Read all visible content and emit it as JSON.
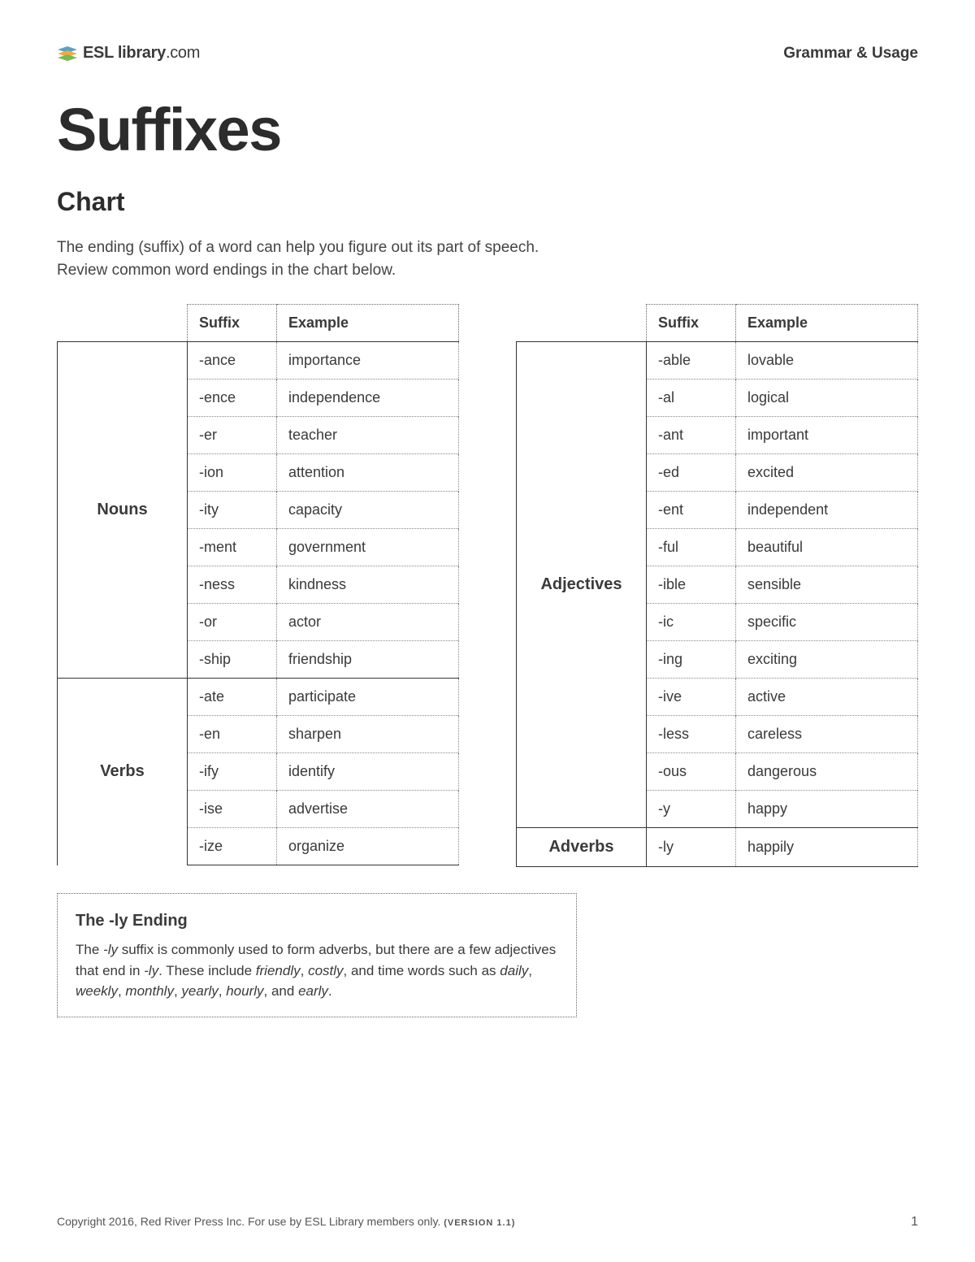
{
  "header": {
    "logo_bold": "ESL library",
    "logo_ext": ".com",
    "category": "Grammar & Usage"
  },
  "title": "Suffixes",
  "subtitle": "Chart",
  "intro_line1": "The ending (suffix) of a word can help you figure out its part of speech.",
  "intro_line2": "Review common word endings in the chart below.",
  "table_headers": {
    "suffix": "Suffix",
    "example": "Example"
  },
  "left_groups": [
    {
      "name": "Nouns",
      "rows": [
        {
          "suffix": "-ance",
          "example": "importance"
        },
        {
          "suffix": "-ence",
          "example": "independence"
        },
        {
          "suffix": "-er",
          "example": "teacher"
        },
        {
          "suffix": "-ion",
          "example": "attention"
        },
        {
          "suffix": "-ity",
          "example": "capacity"
        },
        {
          "suffix": "-ment",
          "example": "government"
        },
        {
          "suffix": "-ness",
          "example": "kindness"
        },
        {
          "suffix": "-or",
          "example": "actor"
        },
        {
          "suffix": "-ship",
          "example": "friendship"
        }
      ]
    },
    {
      "name": "Verbs",
      "rows": [
        {
          "suffix": "-ate",
          "example": "participate"
        },
        {
          "suffix": "-en",
          "example": "sharpen"
        },
        {
          "suffix": "-ify",
          "example": "identify"
        },
        {
          "suffix": "-ise",
          "example": "advertise"
        },
        {
          "suffix": "-ize",
          "example": "organize"
        }
      ]
    }
  ],
  "right_groups": [
    {
      "name": "Adjectives",
      "rows": [
        {
          "suffix": "-able",
          "example": "lovable"
        },
        {
          "suffix": "-al",
          "example": "logical"
        },
        {
          "suffix": "-ant",
          "example": "important"
        },
        {
          "suffix": "-ed",
          "example": "excited"
        },
        {
          "suffix": "-ent",
          "example": "independent"
        },
        {
          "suffix": "-ful",
          "example": "beautiful"
        },
        {
          "suffix": "-ible",
          "example": "sensible"
        },
        {
          "suffix": "-ic",
          "example": "specific"
        },
        {
          "suffix": "-ing",
          "example": "exciting"
        },
        {
          "suffix": "-ive",
          "example": "active"
        },
        {
          "suffix": "-less",
          "example": "careless"
        },
        {
          "suffix": "-ous",
          "example": "dangerous"
        },
        {
          "suffix": "-y",
          "example": "happy"
        }
      ]
    },
    {
      "name": "Adverbs",
      "rows": [
        {
          "suffix": "-ly",
          "example": "happily"
        }
      ]
    }
  ],
  "note": {
    "title": "The -ly Ending",
    "body_parts": [
      "The ",
      "-ly",
      " suffix is commonly used to form adverbs, but there are a few adjectives that end in ",
      "-ly",
      ". These include ",
      "friendly",
      ", ",
      "costly",
      ", and time words such as ",
      "daily",
      ", ",
      "weekly",
      ", ",
      "monthly",
      ", ",
      "yearly",
      ", ",
      "hourly",
      ", and ",
      "early",
      "."
    ],
    "italic_indexes": [
      1,
      3,
      5,
      7,
      9,
      11,
      13,
      15,
      17,
      19
    ]
  },
  "footer": {
    "copyright": "Copyright 2016, Red River Press Inc. For use by ESL Library members only.",
    "version": "(VERSION 1.1)",
    "page": "1"
  },
  "colors": {
    "text": "#3a3a3a",
    "border_solid": "#333333",
    "border_dotted": "#777777",
    "background": "#ffffff"
  }
}
